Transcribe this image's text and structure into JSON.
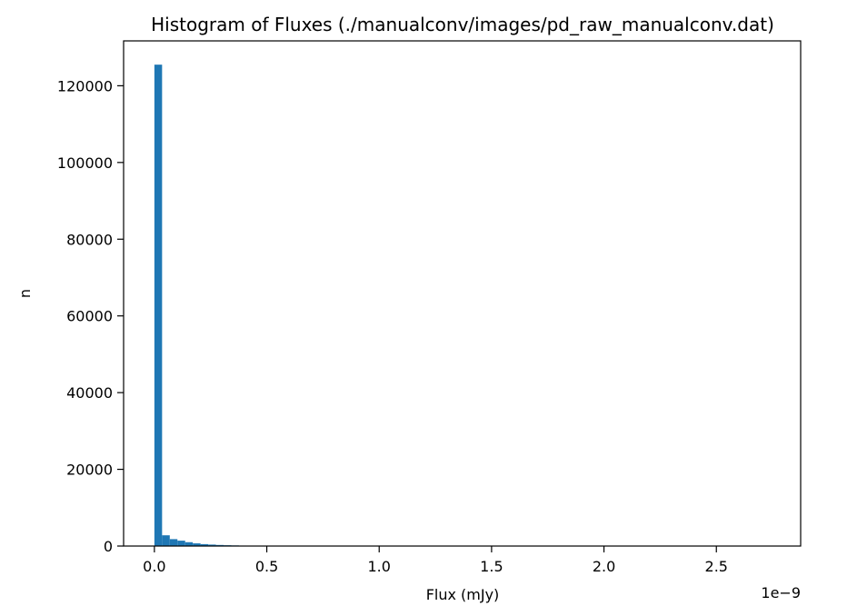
{
  "chart_data": {
    "type": "bar",
    "title": "Histogram of Fluxes (./manualconv/images/pd_raw_manualconv.dat)",
    "xlabel": "Flux (mJy)",
    "ylabel": "n",
    "x_offset_label": "1e−9",
    "x_multiplier": 1e-09,
    "xlim": [
      -0.137,
      2.875
    ],
    "ylim": [
      0,
      131700
    ],
    "xticks": [
      0.0,
      0.5,
      1.0,
      1.5,
      2.0,
      2.5
    ],
    "xtick_labels": [
      "0.0",
      "0.5",
      "1.0",
      "1.5",
      "2.0",
      "2.5"
    ],
    "yticks": [
      0,
      20000,
      40000,
      60000,
      80000,
      100000,
      120000
    ],
    "ytick_labels": [
      "0",
      "20000",
      "40000",
      "60000",
      "80000",
      "100000",
      "120000"
    ],
    "bin_start": 0.0,
    "bin_width": 0.0342,
    "values": [
      125500,
      2800,
      1800,
      1400,
      1000,
      700,
      500,
      380,
      280,
      210,
      160,
      120,
      95,
      80,
      65,
      55,
      45,
      40,
      35,
      30,
      26,
      22,
      20,
      18,
      16,
      14,
      12,
      11,
      10,
      9,
      8,
      7,
      6,
      6,
      5,
      5,
      4,
      4,
      4,
      3,
      3,
      3,
      3,
      2,
      2,
      2,
      2,
      2,
      2,
      2,
      2,
      1,
      1,
      1,
      1,
      1,
      1,
      1,
      1,
      1,
      1,
      1,
      1,
      1,
      1,
      1,
      1,
      1,
      1,
      1,
      1,
      1,
      1,
      1,
      1,
      1,
      1,
      1,
      1,
      1
    ],
    "bar_color": "#1f77b4",
    "grid": false,
    "legend": "none"
  }
}
